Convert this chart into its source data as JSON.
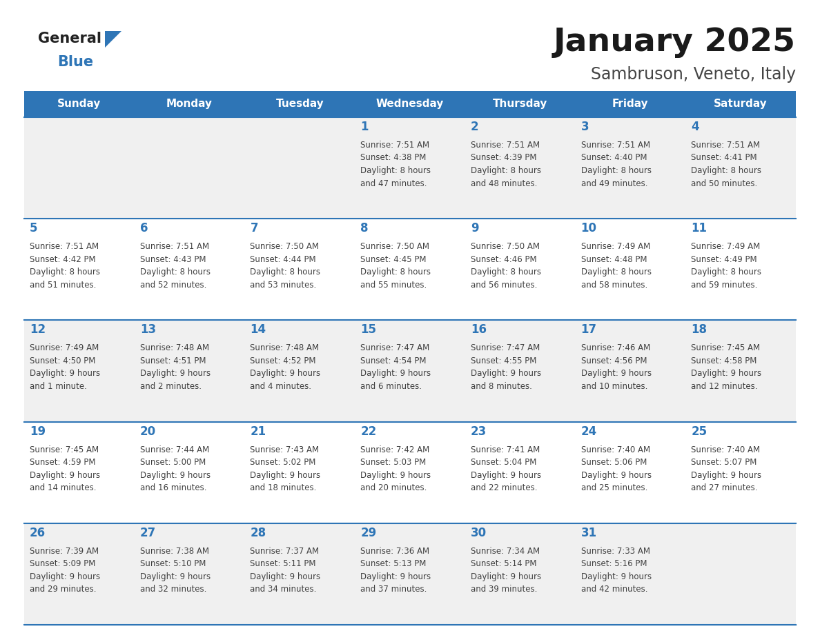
{
  "title": "January 2025",
  "subtitle": "Sambruson, Veneto, Italy",
  "header_color": "#2E75B6",
  "header_text_color": "#FFFFFF",
  "cell_bg_odd": "#F0F0F0",
  "cell_bg_even": "#FFFFFF",
  "day_text_color": "#2E75B6",
  "info_text_color": "#404040",
  "border_color": "#2E75B6",
  "logo_general_color": "#222222",
  "logo_blue_color": "#2E75B6",
  "logo_triangle_color": "#2E75B6",
  "days_of_week": [
    "Sunday",
    "Monday",
    "Tuesday",
    "Wednesday",
    "Thursday",
    "Friday",
    "Saturday"
  ],
  "calendar": [
    [
      {
        "day": null,
        "info": null
      },
      {
        "day": null,
        "info": null
      },
      {
        "day": null,
        "info": null
      },
      {
        "day": 1,
        "info": "Sunrise: 7:51 AM\nSunset: 4:38 PM\nDaylight: 8 hours\nand 47 minutes."
      },
      {
        "day": 2,
        "info": "Sunrise: 7:51 AM\nSunset: 4:39 PM\nDaylight: 8 hours\nand 48 minutes."
      },
      {
        "day": 3,
        "info": "Sunrise: 7:51 AM\nSunset: 4:40 PM\nDaylight: 8 hours\nand 49 minutes."
      },
      {
        "day": 4,
        "info": "Sunrise: 7:51 AM\nSunset: 4:41 PM\nDaylight: 8 hours\nand 50 minutes."
      }
    ],
    [
      {
        "day": 5,
        "info": "Sunrise: 7:51 AM\nSunset: 4:42 PM\nDaylight: 8 hours\nand 51 minutes."
      },
      {
        "day": 6,
        "info": "Sunrise: 7:51 AM\nSunset: 4:43 PM\nDaylight: 8 hours\nand 52 minutes."
      },
      {
        "day": 7,
        "info": "Sunrise: 7:50 AM\nSunset: 4:44 PM\nDaylight: 8 hours\nand 53 minutes."
      },
      {
        "day": 8,
        "info": "Sunrise: 7:50 AM\nSunset: 4:45 PM\nDaylight: 8 hours\nand 55 minutes."
      },
      {
        "day": 9,
        "info": "Sunrise: 7:50 AM\nSunset: 4:46 PM\nDaylight: 8 hours\nand 56 minutes."
      },
      {
        "day": 10,
        "info": "Sunrise: 7:49 AM\nSunset: 4:48 PM\nDaylight: 8 hours\nand 58 minutes."
      },
      {
        "day": 11,
        "info": "Sunrise: 7:49 AM\nSunset: 4:49 PM\nDaylight: 8 hours\nand 59 minutes."
      }
    ],
    [
      {
        "day": 12,
        "info": "Sunrise: 7:49 AM\nSunset: 4:50 PM\nDaylight: 9 hours\nand 1 minute."
      },
      {
        "day": 13,
        "info": "Sunrise: 7:48 AM\nSunset: 4:51 PM\nDaylight: 9 hours\nand 2 minutes."
      },
      {
        "day": 14,
        "info": "Sunrise: 7:48 AM\nSunset: 4:52 PM\nDaylight: 9 hours\nand 4 minutes."
      },
      {
        "day": 15,
        "info": "Sunrise: 7:47 AM\nSunset: 4:54 PM\nDaylight: 9 hours\nand 6 minutes."
      },
      {
        "day": 16,
        "info": "Sunrise: 7:47 AM\nSunset: 4:55 PM\nDaylight: 9 hours\nand 8 minutes."
      },
      {
        "day": 17,
        "info": "Sunrise: 7:46 AM\nSunset: 4:56 PM\nDaylight: 9 hours\nand 10 minutes."
      },
      {
        "day": 18,
        "info": "Sunrise: 7:45 AM\nSunset: 4:58 PM\nDaylight: 9 hours\nand 12 minutes."
      }
    ],
    [
      {
        "day": 19,
        "info": "Sunrise: 7:45 AM\nSunset: 4:59 PM\nDaylight: 9 hours\nand 14 minutes."
      },
      {
        "day": 20,
        "info": "Sunrise: 7:44 AM\nSunset: 5:00 PM\nDaylight: 9 hours\nand 16 minutes."
      },
      {
        "day": 21,
        "info": "Sunrise: 7:43 AM\nSunset: 5:02 PM\nDaylight: 9 hours\nand 18 minutes."
      },
      {
        "day": 22,
        "info": "Sunrise: 7:42 AM\nSunset: 5:03 PM\nDaylight: 9 hours\nand 20 minutes."
      },
      {
        "day": 23,
        "info": "Sunrise: 7:41 AM\nSunset: 5:04 PM\nDaylight: 9 hours\nand 22 minutes."
      },
      {
        "day": 24,
        "info": "Sunrise: 7:40 AM\nSunset: 5:06 PM\nDaylight: 9 hours\nand 25 minutes."
      },
      {
        "day": 25,
        "info": "Sunrise: 7:40 AM\nSunset: 5:07 PM\nDaylight: 9 hours\nand 27 minutes."
      }
    ],
    [
      {
        "day": 26,
        "info": "Sunrise: 7:39 AM\nSunset: 5:09 PM\nDaylight: 9 hours\nand 29 minutes."
      },
      {
        "day": 27,
        "info": "Sunrise: 7:38 AM\nSunset: 5:10 PM\nDaylight: 9 hours\nand 32 minutes."
      },
      {
        "day": 28,
        "info": "Sunrise: 7:37 AM\nSunset: 5:11 PM\nDaylight: 9 hours\nand 34 minutes."
      },
      {
        "day": 29,
        "info": "Sunrise: 7:36 AM\nSunset: 5:13 PM\nDaylight: 9 hours\nand 37 minutes."
      },
      {
        "day": 30,
        "info": "Sunrise: 7:34 AM\nSunset: 5:14 PM\nDaylight: 9 hours\nand 39 minutes."
      },
      {
        "day": 31,
        "info": "Sunrise: 7:33 AM\nSunset: 5:16 PM\nDaylight: 9 hours\nand 42 minutes."
      },
      {
        "day": null,
        "info": null
      }
    ]
  ]
}
